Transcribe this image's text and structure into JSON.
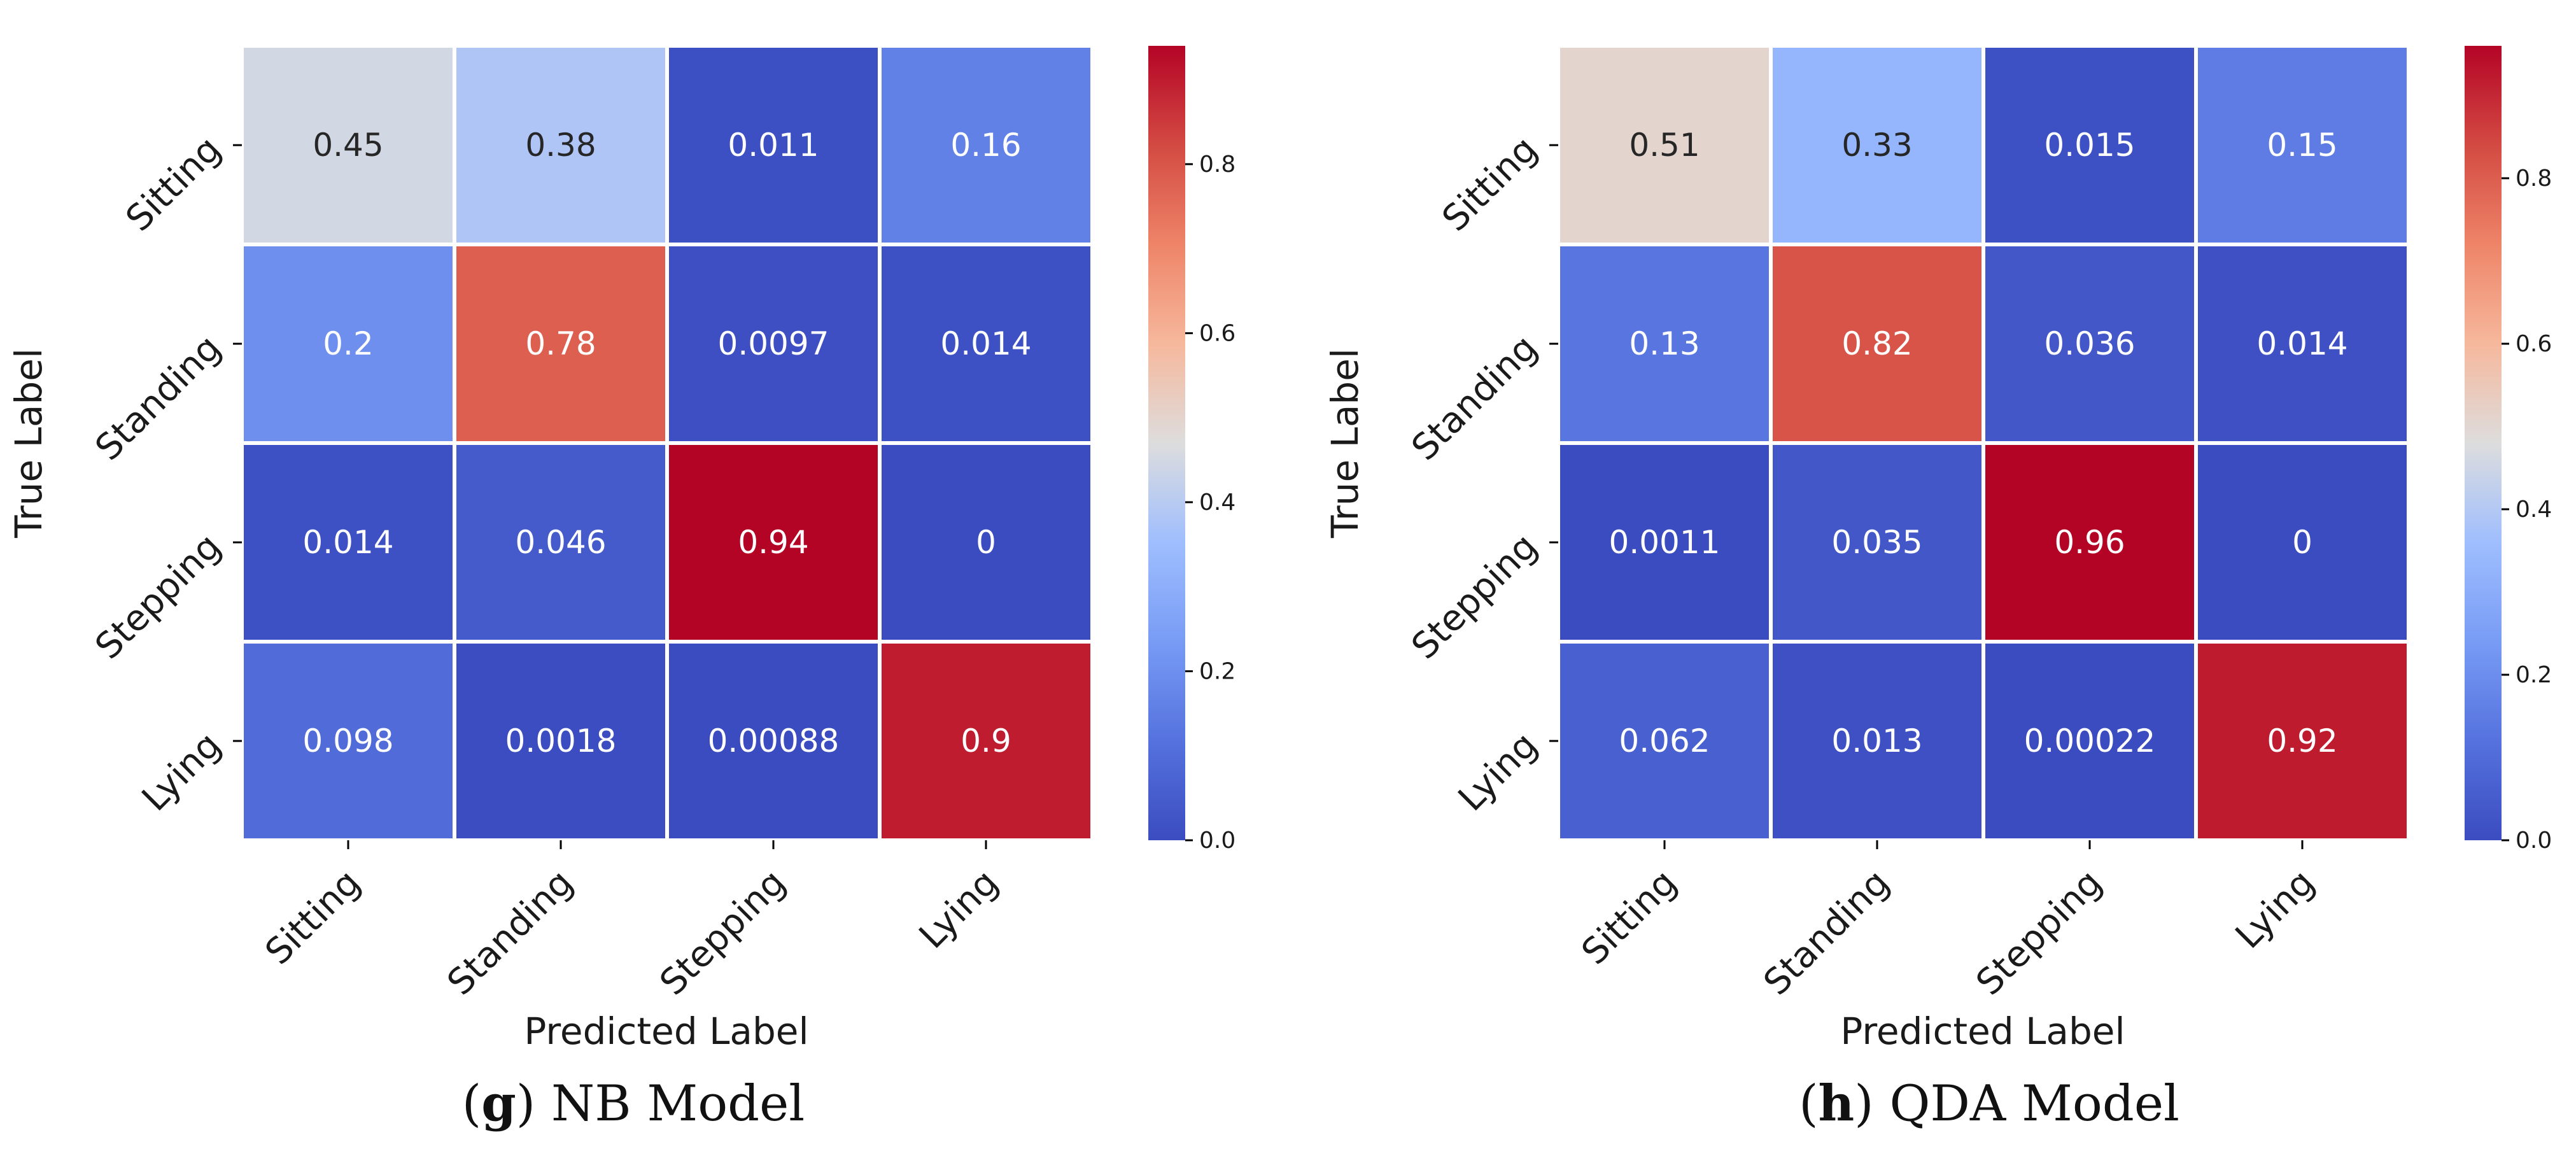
{
  "chart_data": [
    {
      "type": "heatmap",
      "caption_letter": "g",
      "caption_text": " NB Model",
      "xlabel": "Predicted Label",
      "ylabel": "True Label",
      "x_categories": [
        "Sitting",
        "Standing",
        "Stepping",
        "Lying"
      ],
      "y_categories": [
        "Sitting",
        "Standing",
        "Stepping",
        "Lying"
      ],
      "values": [
        [
          "0.45",
          "0.38",
          "0.011",
          "0.16"
        ],
        [
          "0.2",
          "0.78",
          "0.0097",
          "0.014"
        ],
        [
          "0.014",
          "0.046",
          "0.94",
          "0"
        ],
        [
          "0.098",
          "0.0018",
          "0.00088",
          "0.9"
        ]
      ],
      "vmin": 0.0,
      "vmax": 0.94,
      "colormap": "coolwarm",
      "colorbar_ticks": [
        "0.0",
        "0.2",
        "0.4",
        "0.6",
        "0.8"
      ]
    },
    {
      "type": "heatmap",
      "caption_letter": "h",
      "caption_text": " QDA Model",
      "xlabel": "Predicted Label",
      "ylabel": "True Label",
      "x_categories": [
        "Sitting",
        "Standing",
        "Stepping",
        "Lying"
      ],
      "y_categories": [
        "Sitting",
        "Standing",
        "Stepping",
        "Lying"
      ],
      "values": [
        [
          "0.51",
          "0.33",
          "0.015",
          "0.15"
        ],
        [
          "0.13",
          "0.82",
          "0.036",
          "0.014"
        ],
        [
          "0.0011",
          "0.035",
          "0.96",
          "0"
        ],
        [
          "0.062",
          "0.013",
          "0.00022",
          "0.92"
        ]
      ],
      "vmin": 0.0,
      "vmax": 0.96,
      "colormap": "coolwarm",
      "colorbar_ticks": [
        "0.0",
        "0.2",
        "0.4",
        "0.6",
        "0.8"
      ]
    }
  ]
}
